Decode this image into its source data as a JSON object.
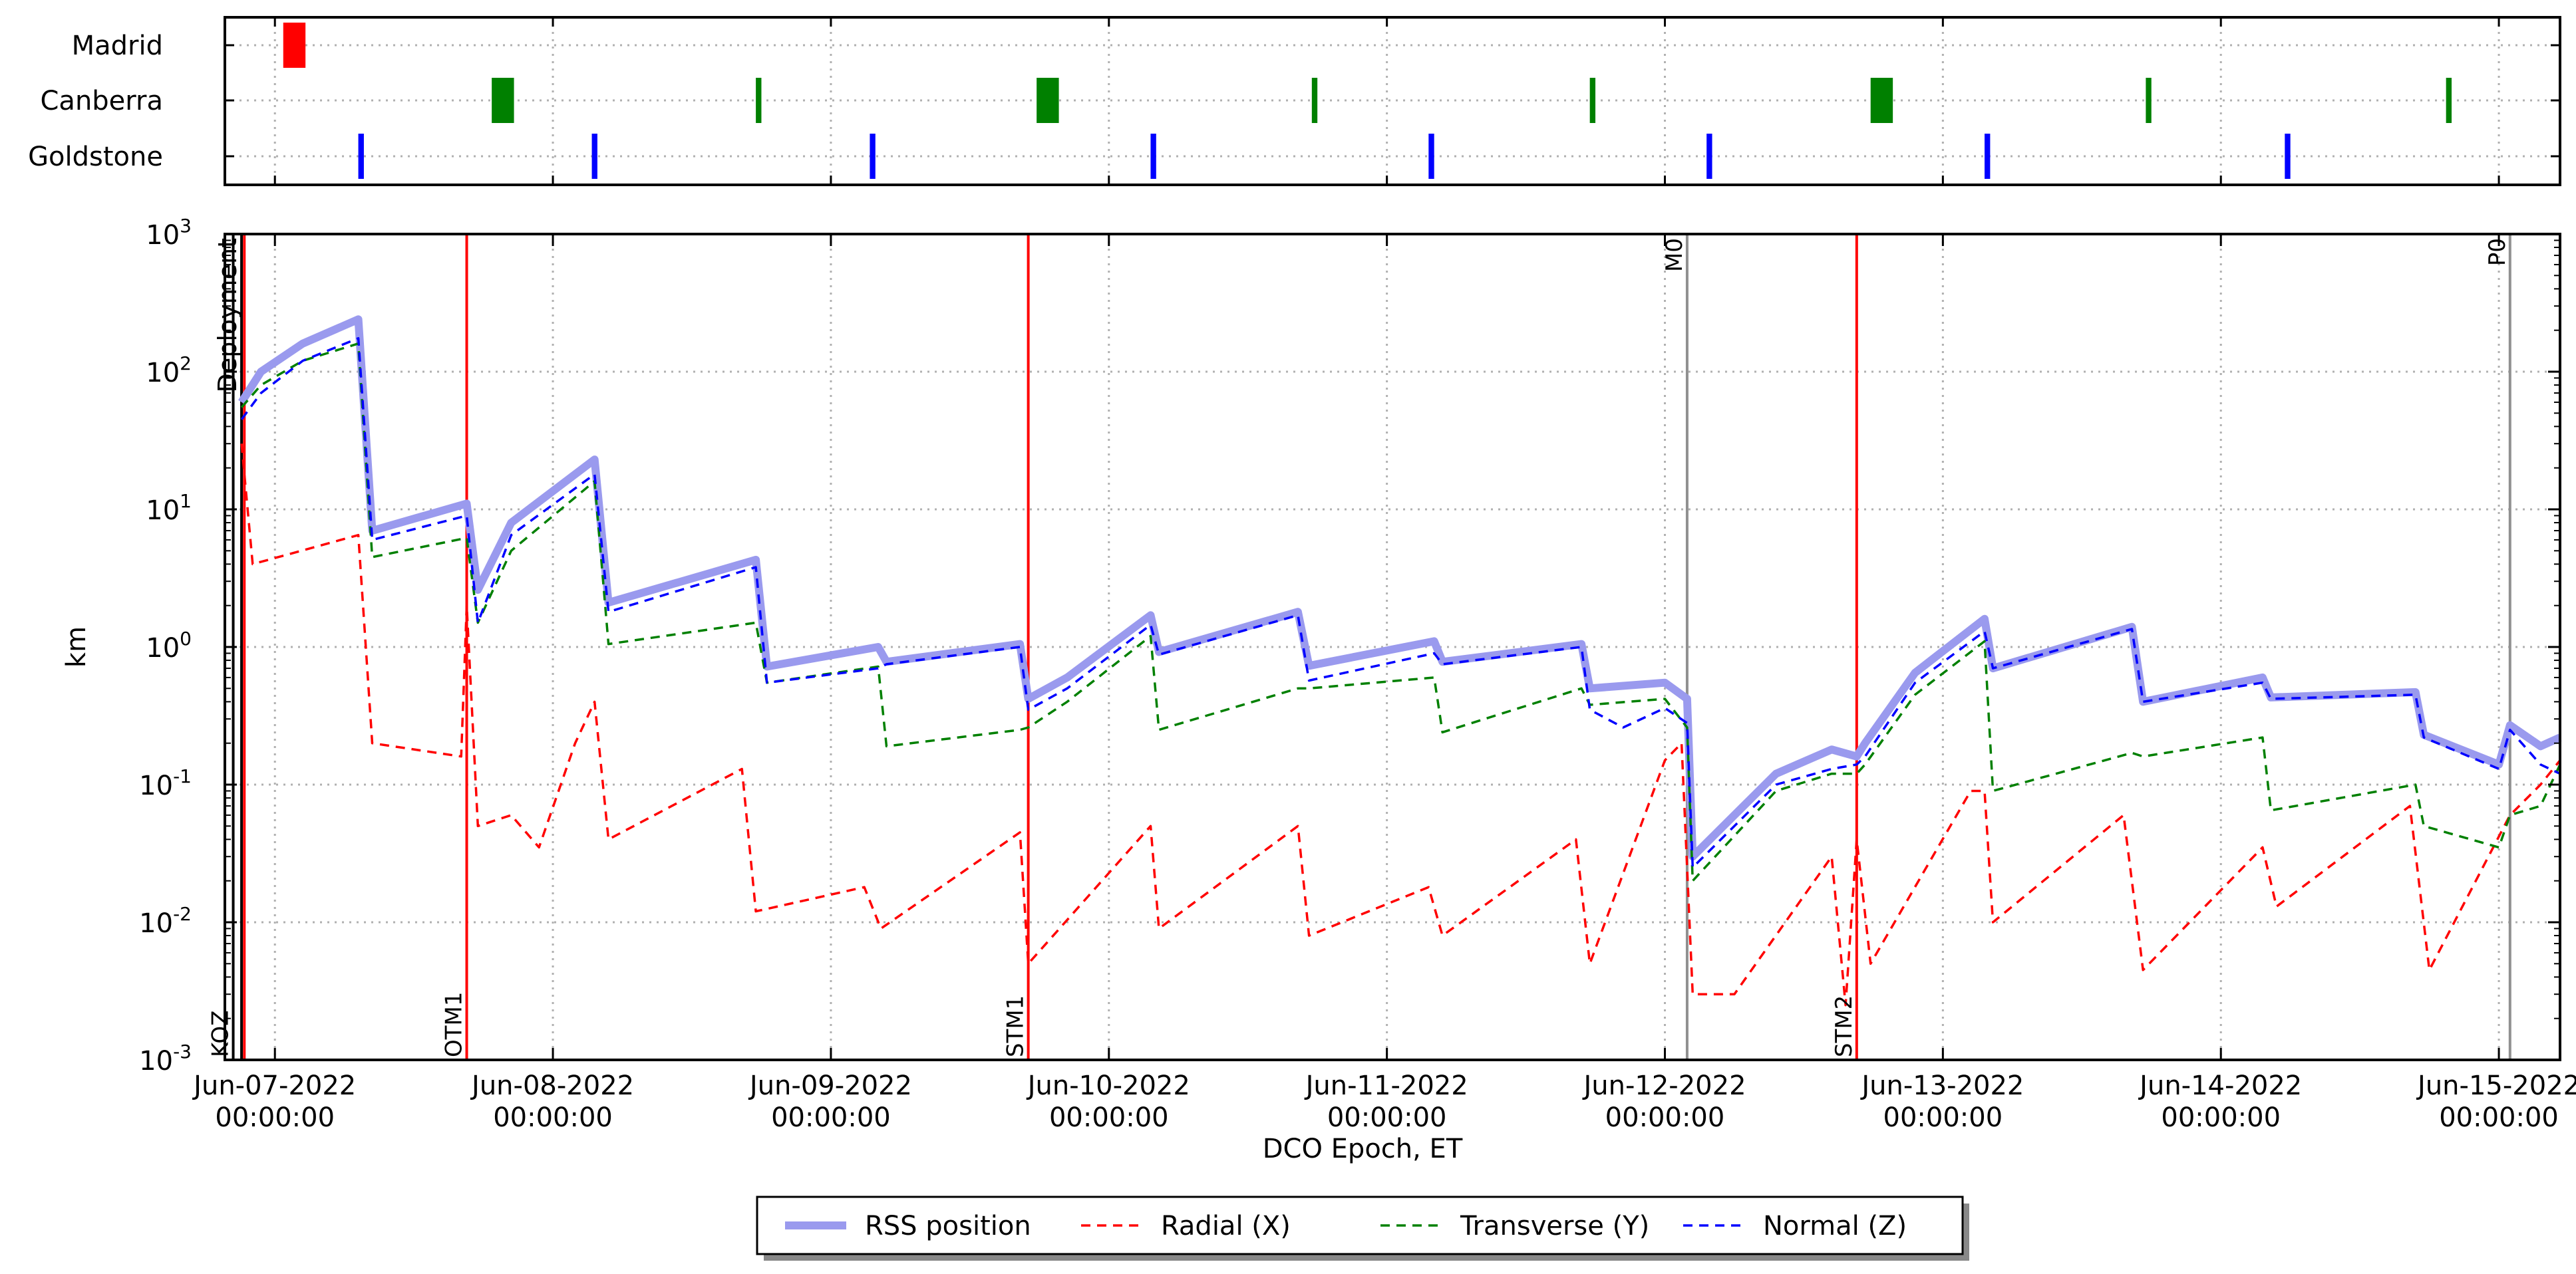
{
  "chart_data": [
    {
      "type": "timeline",
      "rows": [
        {
          "name": "Madrid",
          "color": "#ff0000",
          "passes": [
            [
              0.03,
              0.11
            ]
          ]
        },
        {
          "name": "Canberra",
          "color": "#008000",
          "passes": [
            [
              0.78,
              0.86
            ],
            [
              1.73,
              1.75
            ],
            [
              2.74,
              2.82
            ],
            [
              3.73,
              3.75
            ],
            [
              4.73,
              4.75
            ],
            [
              5.74,
              5.82
            ],
            [
              6.73,
              6.75
            ],
            [
              7.81,
              7.83
            ]
          ]
        },
        {
          "name": "Goldstone",
          "color": "#0000ff",
          "passes": [
            [
              0.3,
              0.32
            ],
            [
              1.14,
              1.16
            ],
            [
              2.14,
              2.16
            ],
            [
              3.15,
              3.17
            ],
            [
              4.15,
              4.17
            ],
            [
              5.15,
              5.17
            ],
            [
              6.15,
              6.17
            ],
            [
              7.23,
              7.25
            ]
          ]
        }
      ],
      "x_start": "Jun-07-2022",
      "xlim_days": [
        -0.18,
        8.22
      ]
    },
    {
      "type": "line",
      "title": "",
      "xlabel": "DCO Epoch, ET",
      "ylabel": "km",
      "yscale": "log",
      "ylim": [
        0.001,
        1000
      ],
      "y_tick_labels": [
        {
          "base": "10",
          "exp": "-3"
        },
        {
          "base": "10",
          "exp": "-2"
        },
        {
          "base": "10",
          "exp": "-1"
        },
        {
          "base": "10",
          "exp": "0"
        },
        {
          "base": "10",
          "exp": "1"
        },
        {
          "base": "10",
          "exp": "2"
        },
        {
          "base": "10",
          "exp": "3"
        }
      ],
      "x_ticks": [
        {
          "date": "Jun-07-2022",
          "time": "00:00:00"
        },
        {
          "date": "Jun-08-2022",
          "time": "00:00:00"
        },
        {
          "date": "Jun-09-2022",
          "time": "00:00:00"
        },
        {
          "date": "Jun-10-2022",
          "time": "00:00:00"
        },
        {
          "date": "Jun-11-2022",
          "time": "00:00:00"
        },
        {
          "date": "Jun-12-2022",
          "time": "00:00:00"
        },
        {
          "date": "Jun-13-2022",
          "time": "00:00:00"
        },
        {
          "date": "Jun-14-2022",
          "time": "00:00:00"
        },
        {
          "date": "Jun-15-2022",
          "time": "00:00:00"
        }
      ],
      "grid": true,
      "legend_placement": "bottom-center",
      "events": [
        {
          "label": "KOZ",
          "day": -0.15,
          "color": "#000000",
          "label_position": "bottom"
        },
        {
          "label": "Deployment",
          "day": -0.12,
          "color": "#000000",
          "label_position": "top"
        },
        {
          "label": "",
          "day": -0.11,
          "color": "#ff0000",
          "label_position": "none"
        },
        {
          "label": "OTM1",
          "day": 0.69,
          "color": "#ff0000",
          "label_position": "bottom"
        },
        {
          "label": "STM1",
          "day": 2.71,
          "color": "#ff0000",
          "label_position": "bottom"
        },
        {
          "label": "M0",
          "day": 5.08,
          "color": "#909090",
          "label_position": "top"
        },
        {
          "label": "STM2",
          "day": 5.69,
          "color": "#ff0000",
          "label_position": "bottom"
        },
        {
          "label": "P0",
          "day": 8.04,
          "color": "#909090",
          "label_position": "top"
        }
      ],
      "series": [
        {
          "name": "RSS position",
          "color": "#9a9aee",
          "style": "solid-thick",
          "points": [
            [
              -0.12,
              60
            ],
            [
              -0.05,
              100
            ],
            [
              0.1,
              160
            ],
            [
              0.3,
              240
            ],
            [
              0.35,
              7.0
            ],
            [
              0.69,
              11
            ],
            [
              0.73,
              2.6
            ],
            [
              0.85,
              8
            ],
            [
              1.15,
              23
            ],
            [
              1.2,
              2.1
            ],
            [
              1.73,
              4.3
            ],
            [
              1.77,
              0.72
            ],
            [
              2.17,
              1.0
            ],
            [
              2.2,
              0.78
            ],
            [
              2.68,
              1.05
            ],
            [
              2.71,
              0.42
            ],
            [
              2.85,
              0.6
            ],
            [
              3.15,
              1.7
            ],
            [
              3.18,
              0.92
            ],
            [
              3.68,
              1.8
            ],
            [
              3.72,
              0.73
            ],
            [
              4.17,
              1.1
            ],
            [
              4.2,
              0.78
            ],
            [
              4.7,
              1.05
            ],
            [
              4.73,
              0.5
            ],
            [
              5.0,
              0.55
            ],
            [
              5.08,
              0.42
            ],
            [
              5.1,
              0.03
            ],
            [
              5.4,
              0.12
            ],
            [
              5.6,
              0.18
            ],
            [
              5.69,
              0.16
            ],
            [
              5.72,
              0.2
            ],
            [
              5.9,
              0.65
            ],
            [
              6.15,
              1.6
            ],
            [
              6.18,
              0.7
            ],
            [
              6.68,
              1.4
            ],
            [
              6.72,
              0.4
            ],
            [
              7.15,
              0.6
            ],
            [
              7.18,
              0.43
            ],
            [
              7.7,
              0.47
            ],
            [
              7.73,
              0.23
            ],
            [
              8.0,
              0.14
            ],
            [
              8.04,
              0.27
            ],
            [
              8.15,
              0.19
            ],
            [
              8.22,
              0.22
            ]
          ]
        },
        {
          "name": "Radial (X)",
          "color": "#ff0000",
          "style": "dashed",
          "points": [
            [
              -0.12,
              30
            ],
            [
              -0.08,
              4.0
            ],
            [
              0.3,
              6.5
            ],
            [
              0.35,
              0.2
            ],
            [
              0.67,
              0.16
            ],
            [
              0.69,
              2.0
            ],
            [
              0.73,
              0.05
            ],
            [
              0.85,
              0.06
            ],
            [
              0.95,
              0.035
            ],
            [
              1.08,
              0.2
            ],
            [
              1.15,
              0.4
            ],
            [
              1.2,
              0.04
            ],
            [
              1.68,
              0.13
            ],
            [
              1.73,
              0.012
            ],
            [
              2.12,
              0.018
            ],
            [
              2.18,
              0.009
            ],
            [
              2.68,
              0.045
            ],
            [
              2.71,
              0.005
            ],
            [
              3.15,
              0.05
            ],
            [
              3.18,
              0.009
            ],
            [
              3.68,
              0.05
            ],
            [
              3.72,
              0.008
            ],
            [
              4.15,
              0.018
            ],
            [
              4.2,
              0.008
            ],
            [
              4.68,
              0.04
            ],
            [
              4.73,
              0.005
            ],
            [
              5.0,
              0.15
            ],
            [
              5.06,
              0.2
            ],
            [
              5.1,
              0.003
            ],
            [
              5.25,
              0.003
            ],
            [
              5.6,
              0.03
            ],
            [
              5.65,
              0.0025
            ],
            [
              5.69,
              0.04
            ],
            [
              5.74,
              0.005
            ],
            [
              6.1,
              0.09
            ],
            [
              6.15,
              0.09
            ],
            [
              6.18,
              0.01
            ],
            [
              6.65,
              0.06
            ],
            [
              6.72,
              0.0045
            ],
            [
              7.15,
              0.035
            ],
            [
              7.2,
              0.013
            ],
            [
              7.68,
              0.07
            ],
            [
              7.75,
              0.0045
            ],
            [
              8.04,
              0.06
            ],
            [
              8.15,
              0.1
            ],
            [
              8.22,
              0.15
            ]
          ]
        },
        {
          "name": "Transverse (Y)",
          "color": "#008000",
          "style": "dashed",
          "points": [
            [
              -0.12,
              55
            ],
            [
              -0.05,
              80
            ],
            [
              0.1,
              120
            ],
            [
              0.3,
              160
            ],
            [
              0.35,
              4.5
            ],
            [
              0.69,
              6.2
            ],
            [
              0.73,
              1.5
            ],
            [
              0.85,
              5
            ],
            [
              1.15,
              16
            ],
            [
              1.2,
              1.05
            ],
            [
              1.73,
              1.5
            ],
            [
              1.77,
              0.55
            ],
            [
              2.17,
              0.72
            ],
            [
              2.2,
              0.19
            ],
            [
              2.68,
              0.25
            ],
            [
              2.71,
              0.26
            ],
            [
              2.85,
              0.4
            ],
            [
              3.15,
              1.2
            ],
            [
              3.18,
              0.25
            ],
            [
              3.68,
              0.5
            ],
            [
              3.72,
              0.5
            ],
            [
              4.17,
              0.6
            ],
            [
              4.2,
              0.24
            ],
            [
              4.7,
              0.5
            ],
            [
              4.73,
              0.38
            ],
            [
              5.0,
              0.42
            ],
            [
              5.08,
              0.26
            ],
            [
              5.1,
              0.02
            ],
            [
              5.4,
              0.09
            ],
            [
              5.6,
              0.12
            ],
            [
              5.69,
              0.12
            ],
            [
              5.72,
              0.14
            ],
            [
              5.9,
              0.45
            ],
            [
              6.15,
              1.1
            ],
            [
              6.18,
              0.09
            ],
            [
              6.68,
              0.17
            ],
            [
              6.72,
              0.16
            ],
            [
              7.15,
              0.22
            ],
            [
              7.18,
              0.065
            ],
            [
              7.7,
              0.1
            ],
            [
              7.73,
              0.05
            ],
            [
              8.0,
              0.035
            ],
            [
              8.04,
              0.06
            ],
            [
              8.15,
              0.07
            ],
            [
              8.22,
              0.14
            ]
          ]
        },
        {
          "name": "Normal (Z)",
          "color": "#0000ff",
          "style": "dashed",
          "points": [
            [
              -0.12,
              45
            ],
            [
              -0.05,
              70
            ],
            [
              0.1,
              120
            ],
            [
              0.3,
              175
            ],
            [
              0.35,
              6.0
            ],
            [
              0.69,
              9
            ],
            [
              0.73,
              1.5
            ],
            [
              0.85,
              6.5
            ],
            [
              1.15,
              18
            ],
            [
              1.2,
              1.8
            ],
            [
              1.73,
              3.8
            ],
            [
              1.77,
              0.55
            ],
            [
              2.17,
              0.7
            ],
            [
              2.2,
              0.75
            ],
            [
              2.68,
              1.0
            ],
            [
              2.71,
              0.35
            ],
            [
              2.85,
              0.5
            ],
            [
              3.15,
              1.45
            ],
            [
              3.18,
              0.88
            ],
            [
              3.68,
              1.7
            ],
            [
              3.72,
              0.57
            ],
            [
              4.17,
              0.9
            ],
            [
              4.2,
              0.75
            ],
            [
              4.7,
              1.0
            ],
            [
              4.73,
              0.35
            ],
            [
              4.85,
              0.26
            ],
            [
              5.0,
              0.36
            ],
            [
              5.08,
              0.28
            ],
            [
              5.1,
              0.025
            ],
            [
              5.4,
              0.1
            ],
            [
              5.6,
              0.13
            ],
            [
              5.69,
              0.14
            ],
            [
              5.72,
              0.16
            ],
            [
              5.9,
              0.55
            ],
            [
              6.15,
              1.3
            ],
            [
              6.18,
              0.7
            ],
            [
              6.68,
              1.35
            ],
            [
              6.72,
              0.4
            ],
            [
              7.15,
              0.55
            ],
            [
              7.18,
              0.42
            ],
            [
              7.7,
              0.45
            ],
            [
              7.73,
              0.22
            ],
            [
              8.0,
              0.13
            ],
            [
              8.04,
              0.25
            ],
            [
              8.15,
              0.14
            ],
            [
              8.22,
              0.12
            ]
          ]
        }
      ]
    }
  ]
}
